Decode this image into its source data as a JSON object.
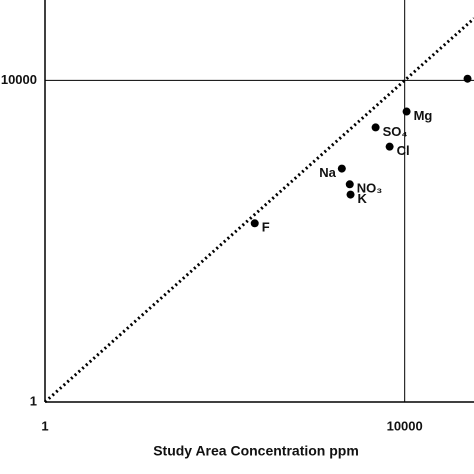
{
  "chart_data": {
    "type": "scatter",
    "x_label": "Study Area Concentration ppm",
    "x": [
      50000,
      10500,
      4750,
      6800,
      2000,
      2450,
      2500,
      215
    ],
    "values": [
      10500,
      4100,
      2600,
      1500,
      800,
      510,
      380,
      167
    ],
    "labels": [
      null,
      "Mg",
      "SO₄",
      "Cl",
      "Na",
      "NO₃",
      "K",
      "F"
    ],
    "color": "#000000",
    "xlim": [
      1,
      59000
    ],
    "ylim": [
      1,
      100000
    ],
    "xticks": [
      1,
      10000
    ],
    "yticks": [
      1,
      10000
    ],
    "log_x": true,
    "log_y": true,
    "grid": true,
    "identity_line": true
  }
}
